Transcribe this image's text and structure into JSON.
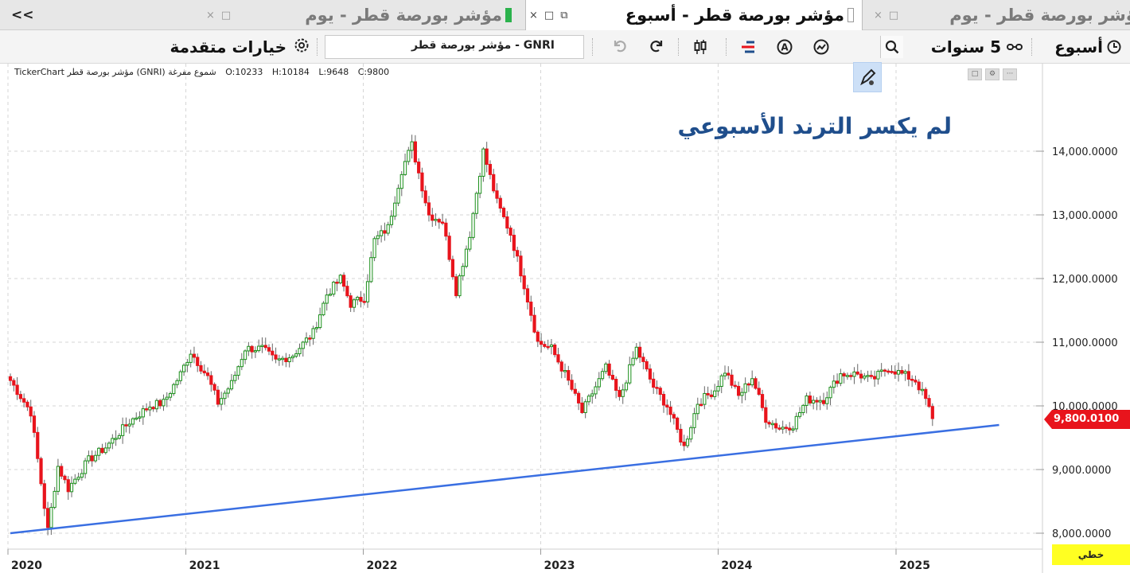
{
  "tabs": [
    {
      "title": "مؤشر بورصة قطر - يوم",
      "active": false,
      "controls": "□"
    },
    {
      "title": "مؤشر بورصة قطر - أسبوع",
      "active": true,
      "controls": "×"
    },
    {
      "title": "مؤشر بورصة قطر - يوم",
      "active": false,
      "controls": "□ ×"
    }
  ],
  "collapse_label": "<<",
  "toolbar": {
    "interval_label": "أسبوع",
    "period_label": "5 سنوات",
    "advanced_label": "خيارات متقدمة",
    "search_value": "GNRI - مؤشر بورصة قطر",
    "icons": [
      "clock-icon",
      "range-icon",
      "pencil-icon",
      "line-chart-icon",
      "auto-icon",
      "indicator-icon",
      "candles-icon",
      "redo-icon",
      "undo-icon",
      "search-icon",
      "gear-icon"
    ]
  },
  "info": {
    "title": "TickerChart مؤشر بورصة قطر (GNRI)  شموع مفرغة",
    "open": "O:10233",
    "high": "H:10184",
    "low": "L:9648",
    "close": "C:9800"
  },
  "annotation": "لم يكسر الترند الأسبوعي",
  "price_tag": "9,800.0100",
  "scale_label": "خطي",
  "colors": {
    "up": "#1a8f1a",
    "down": "#e8141c",
    "trend": "#3a6fe2",
    "annotation": "#1f4e8c",
    "price_tag": "#e8141c"
  },
  "chart_data": {
    "type": "candlestick",
    "title": "",
    "xlabel": "",
    "ylabel": "",
    "ylim": [
      7850,
      15150
    ],
    "xlim": [
      "2019-12-20",
      "2025-12-31"
    ],
    "y_ticks": [
      8000,
      9000,
      10000,
      11000,
      12000,
      13000,
      14000
    ],
    "y_tick_labels": [
      "8,000.0000",
      "9,000.0000",
      "10,000.0000",
      "11,000.0000",
      "12,000.0000",
      "13,000.0000",
      "14,000.0000"
    ],
    "x_ticks": [
      "2020-01-01",
      "2021-01-01",
      "2022-01-01",
      "2023-01-01",
      "2024-01-01",
      "2025-01-01"
    ],
    "x_tick_labels": [
      "2020",
      "2021",
      "2022",
      "2023",
      "2024",
      "2025"
    ],
    "grid": true,
    "last_price": 9800.01,
    "trendline": {
      "points": [
        {
          "date": "2020-01-06",
          "value": 8000
        },
        {
          "date": "2025-08-01",
          "value": 9700
        }
      ]
    },
    "price_path": [
      {
        "date": "2020-01-06",
        "value": 10400
      },
      {
        "date": "2020-02-17",
        "value": 9900
      },
      {
        "date": "2020-03-23",
        "value": 8050
      },
      {
        "date": "2020-04-13",
        "value": 9050
      },
      {
        "date": "2020-05-04",
        "value": 8700
      },
      {
        "date": "2020-06-15",
        "value": 9150
      },
      {
        "date": "2020-07-20",
        "value": 9350
      },
      {
        "date": "2020-09-07",
        "value": 9750
      },
      {
        "date": "2020-10-19",
        "value": 10000
      },
      {
        "date": "2020-11-16",
        "value": 10050
      },
      {
        "date": "2020-12-21",
        "value": 10500
      },
      {
        "date": "2021-01-11",
        "value": 10850
      },
      {
        "date": "2021-02-15",
        "value": 10450
      },
      {
        "date": "2021-03-08",
        "value": 10050
      },
      {
        "date": "2021-04-05",
        "value": 10350
      },
      {
        "date": "2021-05-03",
        "value": 10900
      },
      {
        "date": "2021-06-07",
        "value": 10900
      },
      {
        "date": "2021-07-05",
        "value": 10700
      },
      {
        "date": "2021-08-09",
        "value": 10800
      },
      {
        "date": "2021-09-20",
        "value": 11150
      },
      {
        "date": "2021-10-18",
        "value": 11750
      },
      {
        "date": "2021-11-15",
        "value": 12000
      },
      {
        "date": "2021-12-06",
        "value": 11600
      },
      {
        "date": "2022-01-03",
        "value": 11700
      },
      {
        "date": "2022-01-24",
        "value": 12600
      },
      {
        "date": "2022-02-21",
        "value": 12800
      },
      {
        "date": "2022-03-21",
        "value": 13700
      },
      {
        "date": "2022-04-11",
        "value": 14100
      },
      {
        "date": "2022-05-16",
        "value": 13000
      },
      {
        "date": "2022-06-13",
        "value": 12900
      },
      {
        "date": "2022-07-11",
        "value": 11800
      },
      {
        "date": "2022-08-08",
        "value": 12700
      },
      {
        "date": "2022-09-05",
        "value": 14000
      },
      {
        "date": "2022-10-03",
        "value": 13200
      },
      {
        "date": "2022-10-31",
        "value": 12700
      },
      {
        "date": "2022-11-28",
        "value": 11900
      },
      {
        "date": "2022-12-26",
        "value": 11000
      },
      {
        "date": "2023-01-23",
        "value": 10900
      },
      {
        "date": "2023-02-20",
        "value": 10500
      },
      {
        "date": "2023-03-27",
        "value": 9900
      },
      {
        "date": "2023-04-17",
        "value": 10200
      },
      {
        "date": "2023-05-15",
        "value": 10600
      },
      {
        "date": "2023-06-12",
        "value": 10100
      },
      {
        "date": "2023-07-17",
        "value": 10900
      },
      {
        "date": "2023-08-21",
        "value": 10300
      },
      {
        "date": "2023-09-18",
        "value": 10000
      },
      {
        "date": "2023-10-23",
        "value": 9350
      },
      {
        "date": "2023-11-20",
        "value": 10050
      },
      {
        "date": "2023-12-25",
        "value": 10250
      },
      {
        "date": "2024-01-15",
        "value": 10550
      },
      {
        "date": "2024-02-12",
        "value": 10150
      },
      {
        "date": "2024-03-11",
        "value": 10450
      },
      {
        "date": "2024-04-08",
        "value": 9800
      },
      {
        "date": "2024-05-06",
        "value": 9650
      },
      {
        "date": "2024-06-03",
        "value": 9700
      },
      {
        "date": "2024-07-01",
        "value": 10100
      },
      {
        "date": "2024-08-05",
        "value": 10100
      },
      {
        "date": "2024-09-09",
        "value": 10500
      },
      {
        "date": "2024-10-14",
        "value": 10500
      },
      {
        "date": "2024-11-11",
        "value": 10400
      },
      {
        "date": "2024-12-16",
        "value": 10600
      },
      {
        "date": "2025-01-13",
        "value": 10500
      },
      {
        "date": "2025-02-10",
        "value": 10400
      },
      {
        "date": "2025-03-03",
        "value": 10100
      },
      {
        "date": "2025-03-17",
        "value": 9800
      }
    ]
  }
}
